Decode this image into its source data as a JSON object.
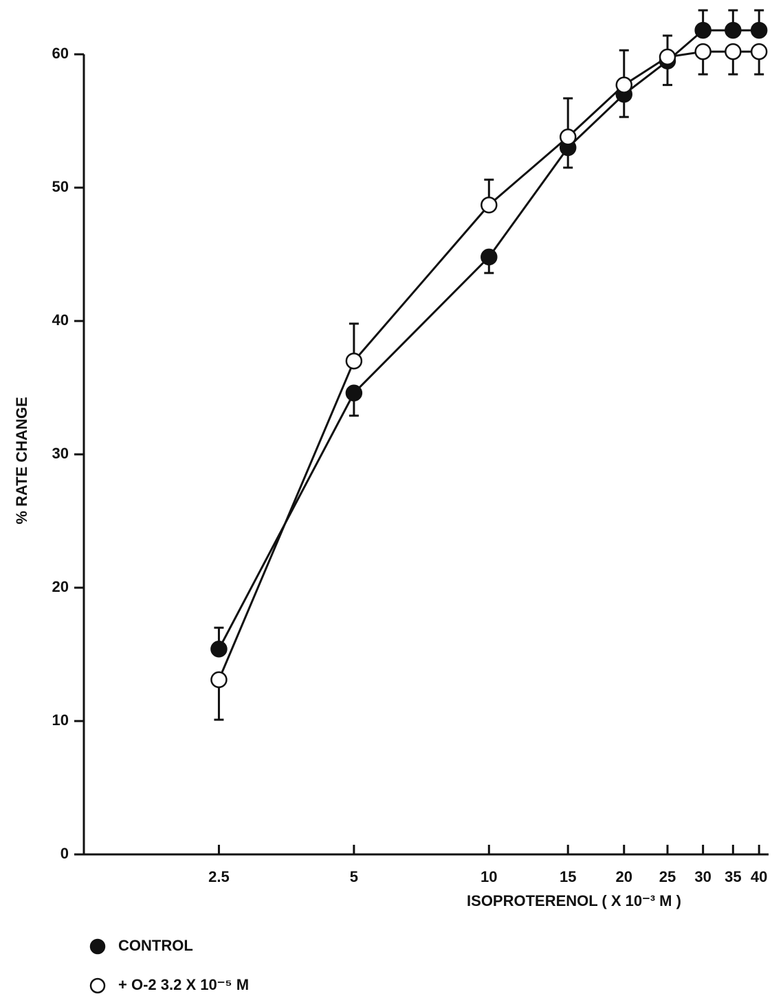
{
  "chart_data": {
    "type": "line",
    "x_label": "ISOPROTERENOL ( X 10⁻³ M )",
    "y_label": "% RATE CHANGE",
    "xscale": "log",
    "x": [
      2.5,
      5,
      10,
      15,
      20,
      25,
      30,
      35,
      40
    ],
    "xlim": [
      1.25,
      42
    ],
    "xticks": [
      2.5,
      5,
      10,
      15,
      20,
      25,
      30,
      35,
      40
    ],
    "ylim": [
      0,
      60
    ],
    "yticks": [
      0,
      10,
      20,
      30,
      40,
      50,
      60
    ],
    "series": [
      {
        "name": "CONTROL",
        "color": "#111111",
        "marker": "filled",
        "values": [
          15.4,
          34.6,
          44.8,
          53.0,
          57.0,
          59.5,
          61.8,
          61.8,
          61.8
        ],
        "errors": [
          1.6,
          1.7,
          1.2,
          1.5,
          1.7,
          1.8,
          1.5,
          1.5,
          1.5
        ],
        "error_sides": [
          "up",
          "down",
          "down",
          "down",
          "down",
          "down",
          "up",
          "up",
          "up"
        ]
      },
      {
        "name": "+ O-2  3.2 X 10⁻⁵ M",
        "color": "#111111",
        "marker": "open",
        "values": [
          13.1,
          37.0,
          48.7,
          53.8,
          57.7,
          59.8,
          60.2,
          60.2,
          60.2
        ],
        "errors": [
          3.0,
          2.8,
          1.9,
          2.9,
          2.6,
          1.6,
          1.7,
          1.7,
          1.7
        ],
        "error_sides": [
          "down",
          "up",
          "up",
          "up",
          "up",
          "up",
          "down",
          "down",
          "down"
        ]
      }
    ]
  }
}
